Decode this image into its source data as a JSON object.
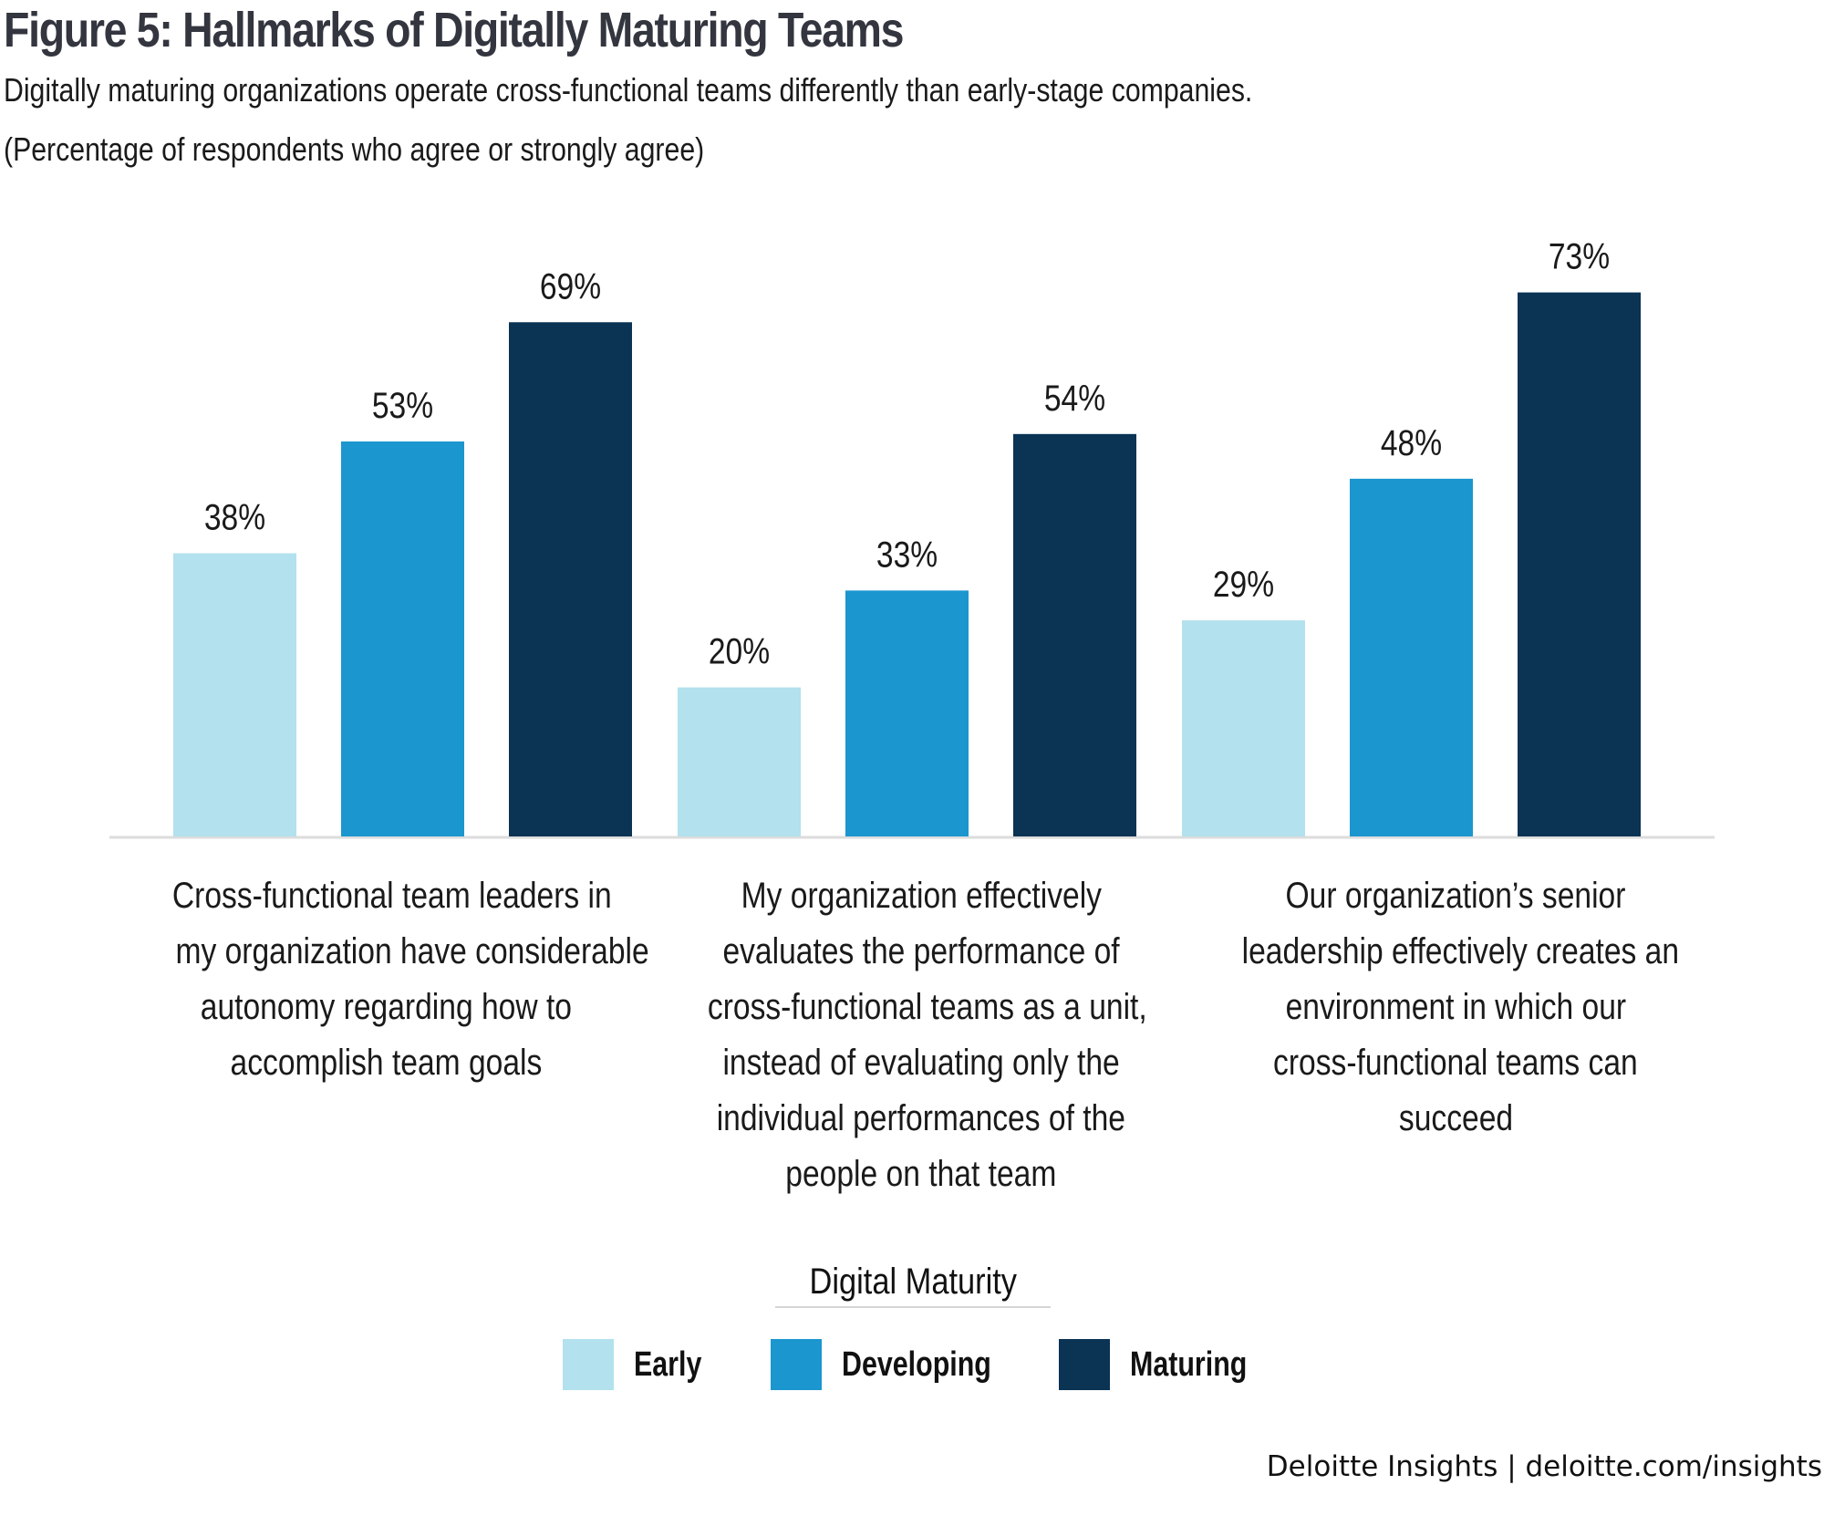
{
  "header": {
    "title": "Figure 5: Hallmarks of Digitally Maturing Teams",
    "subtitle": "Digitally maturing organizations operate cross-functional teams differently than early-stage companies.",
    "note": "(Percentage of respondents who agree or strongly agree)"
  },
  "colors": {
    "early": "#b3e1ee",
    "developing": "#1b96cf",
    "maturing": "#0a3354",
    "baseline": "#dcdcdc"
  },
  "chart_data": {
    "type": "bar",
    "title": "Figure 5: Hallmarks of Digitally Maturing Teams",
    "subtitle": "Digitally maturing organizations operate cross-functional teams differently than early-stage companies.",
    "xlabel": "",
    "ylabel": "Percentage of respondents who agree or strongly agree",
    "ylim": [
      0,
      100
    ],
    "grid": false,
    "legend_title": "Digital Maturity",
    "legend_position": "bottom-center",
    "categories": [
      "Cross-functional team leaders in my organization have considerable autonomy regarding how to accomplish team goals",
      "My organization effectively evaluates the performance of cross-functional teams as a unit, instead of evaluating only the individual performances of the people on that team",
      "Our organization’s senior leadership effectively creates an environment in which our cross-functional teams can succeed"
    ],
    "category_lines": [
      [
        "Cross-functional team leaders in",
        "my organization have considerable",
        "autonomy regarding how to",
        "accomplish team goals"
      ],
      [
        "My organization effectively",
        "evaluates the performance of",
        "cross-functional teams as a unit,",
        "instead of evaluating only the",
        "individual performances of the",
        "people on that team"
      ],
      [
        "Our organization’s senior",
        "leadership effectively creates an",
        "environment in which our",
        "cross-functional teams can",
        "succeed"
      ]
    ],
    "series": [
      {
        "name": "Early",
        "values": [
          38,
          20,
          29
        ],
        "labels": [
          "38%",
          "20%",
          "29%"
        ]
      },
      {
        "name": "Developing",
        "values": [
          53,
          33,
          48
        ],
        "labels": [
          "53%",
          "33%",
          "48%"
        ]
      },
      {
        "name": "Maturing",
        "values": [
          69,
          54,
          73
        ],
        "labels": [
          "69%",
          "54%",
          "73%"
        ]
      }
    ]
  },
  "legend": {
    "title": "Digital Maturity",
    "items": [
      {
        "label": "Early",
        "color_key": "early"
      },
      {
        "label": "Developing",
        "color_key": "developing"
      },
      {
        "label": "Maturing",
        "color_key": "maturing"
      }
    ]
  },
  "footer": {
    "source": "Deloitte Insights | deloitte.com/insights"
  }
}
